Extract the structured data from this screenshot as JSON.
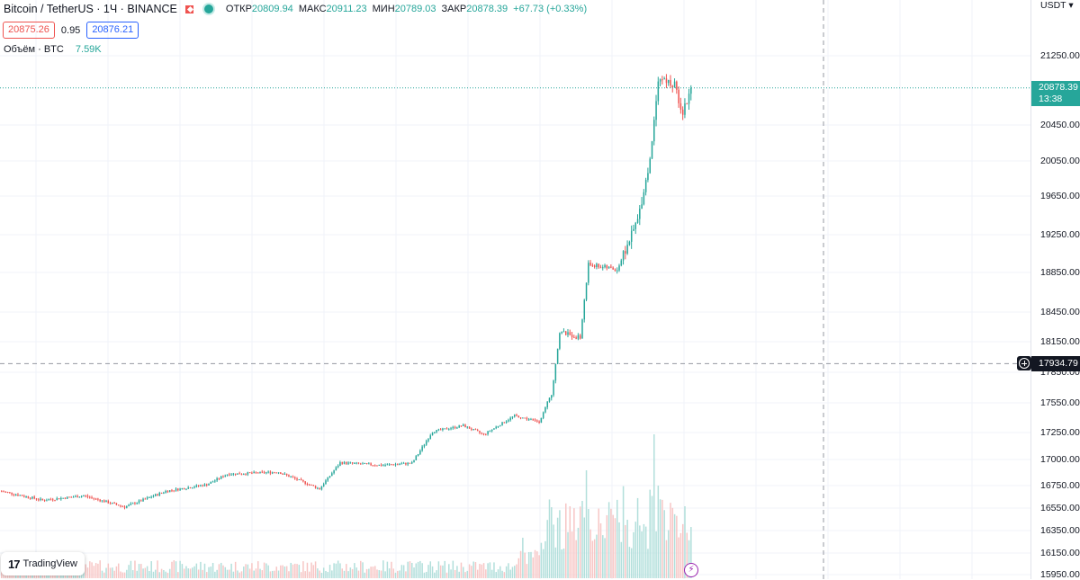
{
  "header": {
    "symbol": "Bitcoin / TetherUS · 1Ч · BINANCE",
    "flag_icon": "flag-icon",
    "status_icon": "market-open-dot-icon",
    "open_label": "ОТКР",
    "open_value": "20809.94",
    "high_label": "МАКС",
    "high_value": "20911.23",
    "low_label": "МИН",
    "low_value": "20789.03",
    "close_label": "ЗАКР",
    "close_value": "20878.39",
    "change": "+67.73 (+0.33%)"
  },
  "bidask": {
    "sell": "20875.26",
    "spread": "0.95",
    "buy": "20876.21"
  },
  "volume_legend": {
    "label": "Объём · BTC",
    "value": "7.59K"
  },
  "price_axis": {
    "currency": "USDT",
    "ticks": [
      "21250.00",
      "20450.00",
      "20050.00",
      "19650.00",
      "19250.00",
      "18850.00",
      "18450.00",
      "18150.00",
      "17850.00",
      "17550.00",
      "17250.00",
      "17000.00",
      "16750.00",
      "16550.00",
      "16350.00",
      "16150.00",
      "15950.00"
    ],
    "last_price": "20878.39",
    "countdown": "13:38",
    "crosshair_price": "17934.79"
  },
  "branding": {
    "logo_text": "TradingView",
    "logo_mark": "17"
  },
  "colors": {
    "up": "#26a69a",
    "down": "#ef5350",
    "volume_up": "#b2dfdb",
    "volume_down": "#f7c6c5",
    "grid": "#f0f3fa",
    "crosshair": "#9598a1"
  },
  "chart_data": {
    "type": "candlestick",
    "symbol": "BTC/USDT",
    "interval": "1h",
    "price_range": [
      15950,
      21250
    ],
    "last_price": 20878.39,
    "crosshair_price": 17934.79,
    "volume_unit": "BTC",
    "key_points": [
      {
        "i": 0,
        "price": 16700
      },
      {
        "i": 20,
        "price": 16620
      },
      {
        "i": 40,
        "price": 16660
      },
      {
        "i": 60,
        "price": 16560
      },
      {
        "i": 80,
        "price": 16700
      },
      {
        "i": 100,
        "price": 16760
      },
      {
        "i": 110,
        "price": 16860
      },
      {
        "i": 135,
        "price": 16880
      },
      {
        "i": 155,
        "price": 16720
      },
      {
        "i": 165,
        "price": 16970
      },
      {
        "i": 185,
        "price": 16945
      },
      {
        "i": 200,
        "price": 16965
      },
      {
        "i": 210,
        "price": 17260
      },
      {
        "i": 225,
        "price": 17320
      },
      {
        "i": 235,
        "price": 17230
      },
      {
        "i": 250,
        "price": 17420
      },
      {
        "i": 262,
        "price": 17360
      },
      {
        "i": 268,
        "price": 17630
      },
      {
        "i": 272,
        "price": 18250
      },
      {
        "i": 282,
        "price": 18190
      },
      {
        "i": 286,
        "price": 18940
      },
      {
        "i": 300,
        "price": 18880
      },
      {
        "i": 310,
        "price": 19400
      },
      {
        "i": 316,
        "price": 20050
      },
      {
        "i": 320,
        "price": 21000
      },
      {
        "i": 328,
        "price": 20900
      },
      {
        "i": 332,
        "price": 20600
      },
      {
        "i": 336,
        "price": 20878
      }
    ]
  }
}
